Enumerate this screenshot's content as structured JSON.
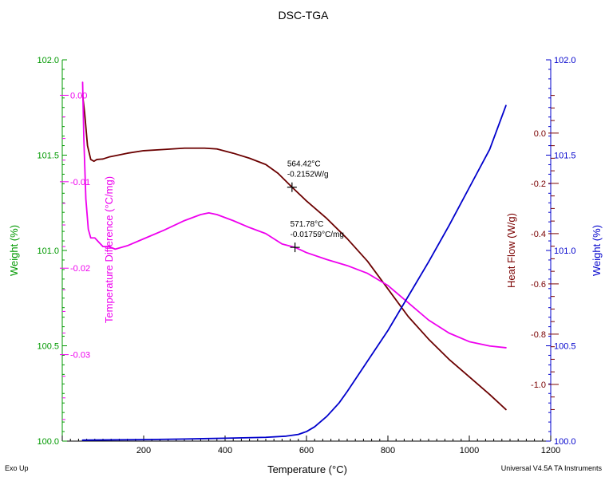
{
  "chart_data": {
    "type": "line",
    "title": "DSC-TGA",
    "xlabel": "Temperature (°C)",
    "xlim": [
      0,
      1200
    ],
    "x_ticks": [
      {
        "v": 0,
        "label": ""
      },
      {
        "v": 200,
        "label": "200"
      },
      {
        "v": 400,
        "label": "400"
      },
      {
        "v": 600,
        "label": "600"
      },
      {
        "v": 800,
        "label": "800"
      },
      {
        "v": 1000,
        "label": "1000"
      },
      {
        "v": 1200,
        "label": "1200"
      }
    ],
    "footer_left": "Exo Up",
    "footer_right": "Universal V4.5A TA Instruments",
    "grid": false,
    "axes": {
      "weight_left": {
        "label": "Weight (%)",
        "color": "#009900",
        "range": [
          100.0,
          102.0
        ],
        "ticks": [
          {
            "v": 100.0,
            "label": "100.0"
          },
          {
            "v": 100.5,
            "label": "100.5"
          },
          {
            "v": 101.0,
            "label": "101.0"
          },
          {
            "v": 101.5,
            "label": "101.5"
          },
          {
            "v": 102.0,
            "label": "102.0"
          }
        ]
      },
      "temp_diff": {
        "label": "Temperature Difference (°C/mg)",
        "color": "#ee00ee",
        "range": [
          -0.04,
          0.0041
        ],
        "ticks": [
          {
            "v": 0.0,
            "label": "0.00"
          },
          {
            "v": -0.01,
            "label": "-0.01"
          },
          {
            "v": -0.02,
            "label": "-0.02"
          },
          {
            "v": -0.03,
            "label": "-0.03"
          }
        ]
      },
      "heat_flow": {
        "label": "Heat Flow (W/g)",
        "color": "#7a0000",
        "range": [
          -1.2256,
          0.2916
        ],
        "ticks": [
          {
            "v": 0.0,
            "label": "0.0"
          },
          {
            "v": -0.2,
            "label": "-0.2"
          },
          {
            "v": -0.4,
            "label": "-0.4"
          },
          {
            "v": -0.6,
            "label": "-0.6"
          },
          {
            "v": -0.8,
            "label": "-0.8"
          },
          {
            "v": -1.0,
            "label": "-1.0"
          }
        ]
      },
      "weight_right": {
        "label": "Weight (%)",
        "color": "#0000cc",
        "range": [
          100.0,
          102.0
        ],
        "ticks": [
          {
            "v": 100.0,
            "label": "100.0"
          },
          {
            "v": 100.5,
            "label": "100.5"
          },
          {
            "v": 101.0,
            "label": "101.0"
          },
          {
            "v": 101.5,
            "label": "101.5"
          },
          {
            "v": 102.0,
            "label": "102.0"
          }
        ]
      }
    },
    "series": [
      {
        "axis": "heat_flow",
        "color": "#6b0000",
        "x": [
          50,
          55,
          62,
          70,
          78,
          85,
          100,
          115,
          130,
          160,
          200,
          250,
          300,
          350,
          380,
          420,
          460,
          500,
          530,
          564.42,
          600,
          650,
          700,
          750,
          800,
          850,
          900,
          950,
          1000,
          1050,
          1090
        ],
        "y": [
          0.151,
          0.08,
          -0.05,
          -0.105,
          -0.112,
          -0.105,
          -0.103,
          -0.095,
          -0.09,
          -0.08,
          -0.07,
          -0.065,
          -0.06,
          -0.06,
          -0.063,
          -0.08,
          -0.1,
          -0.125,
          -0.16,
          -0.2152,
          -0.27,
          -0.34,
          -0.42,
          -0.51,
          -0.62,
          -0.73,
          -0.82,
          -0.9,
          -0.97,
          -1.04,
          -1.1
        ]
      },
      {
        "axis": "temp_diff",
        "color": "#ee00ee",
        "x": [
          50,
          53,
          58,
          64,
          70,
          80,
          90,
          100,
          115,
          130,
          160,
          200,
          250,
          300,
          340,
          360,
          380,
          420,
          460,
          500,
          540,
          571.78,
          600,
          650,
          700,
          750,
          800,
          850,
          900,
          950,
          1000,
          1050,
          1090
        ],
        "y": [
          0.0015,
          -0.005,
          -0.012,
          -0.0155,
          -0.0165,
          -0.0165,
          -0.017,
          -0.0175,
          -0.0175,
          -0.0178,
          -0.0174,
          -0.0166,
          -0.0156,
          -0.0145,
          -0.0138,
          -0.0136,
          -0.0138,
          -0.0145,
          -0.0153,
          -0.016,
          -0.0172,
          -0.01759,
          -0.0182,
          -0.019,
          -0.0197,
          -0.0206,
          -0.022,
          -0.024,
          -0.026,
          -0.0275,
          -0.0285,
          -0.029,
          -0.0292
        ]
      },
      {
        "axis": "weight_right",
        "color": "#0000cc",
        "x": [
          50,
          100,
          200,
          300,
          400,
          500,
          550,
          580,
          600,
          620,
          650,
          680,
          700,
          750,
          800,
          850,
          900,
          950,
          1000,
          1050,
          1090
        ],
        "y": [
          100.005,
          100.006,
          100.008,
          100.011,
          100.015,
          100.02,
          100.026,
          100.035,
          100.05,
          100.075,
          100.13,
          100.2,
          100.26,
          100.42,
          100.58,
          100.76,
          100.94,
          101.13,
          101.33,
          101.53,
          101.76
        ]
      }
    ],
    "annotations": [
      {
        "axis": "heat_flow",
        "x": 564.42,
        "y": -0.2152,
        "lines": [
          "564.42°C",
          "-0.2152W/g"
        ],
        "color": "#000000"
      },
      {
        "axis": "temp_diff",
        "x": 571.78,
        "y": -0.01759,
        "lines": [
          "571.78°C",
          "-0.01759°C/mg"
        ],
        "color": "#000000"
      }
    ]
  }
}
